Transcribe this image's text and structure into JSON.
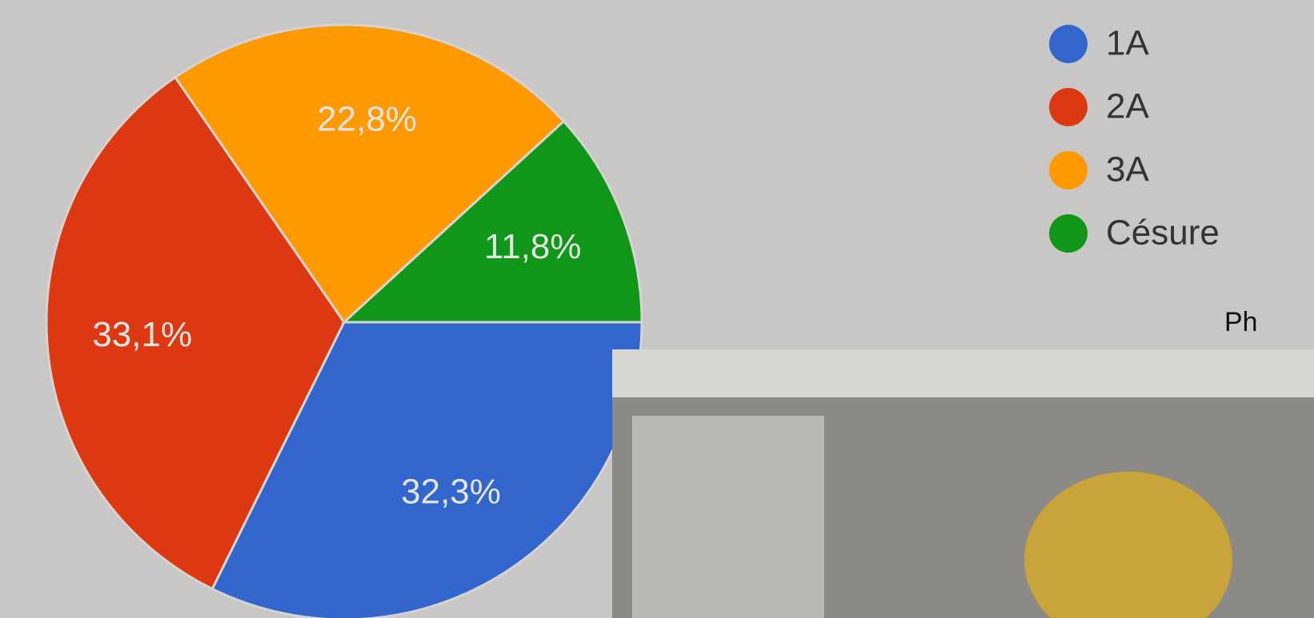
{
  "chart_data": {
    "type": "pie",
    "categories": [
      "1A",
      "2A",
      "3A",
      "Césure"
    ],
    "values": [
      32.3,
      33.1,
      22.8,
      11.8
    ],
    "value_labels": [
      "32,3%",
      "33,1%",
      "22,8%",
      "11,8%"
    ],
    "colors": [
      "#3366cc",
      "#dc3912",
      "#ff9900",
      "#109618"
    ],
    "legend": "top-right",
    "annotation": "Ph"
  }
}
